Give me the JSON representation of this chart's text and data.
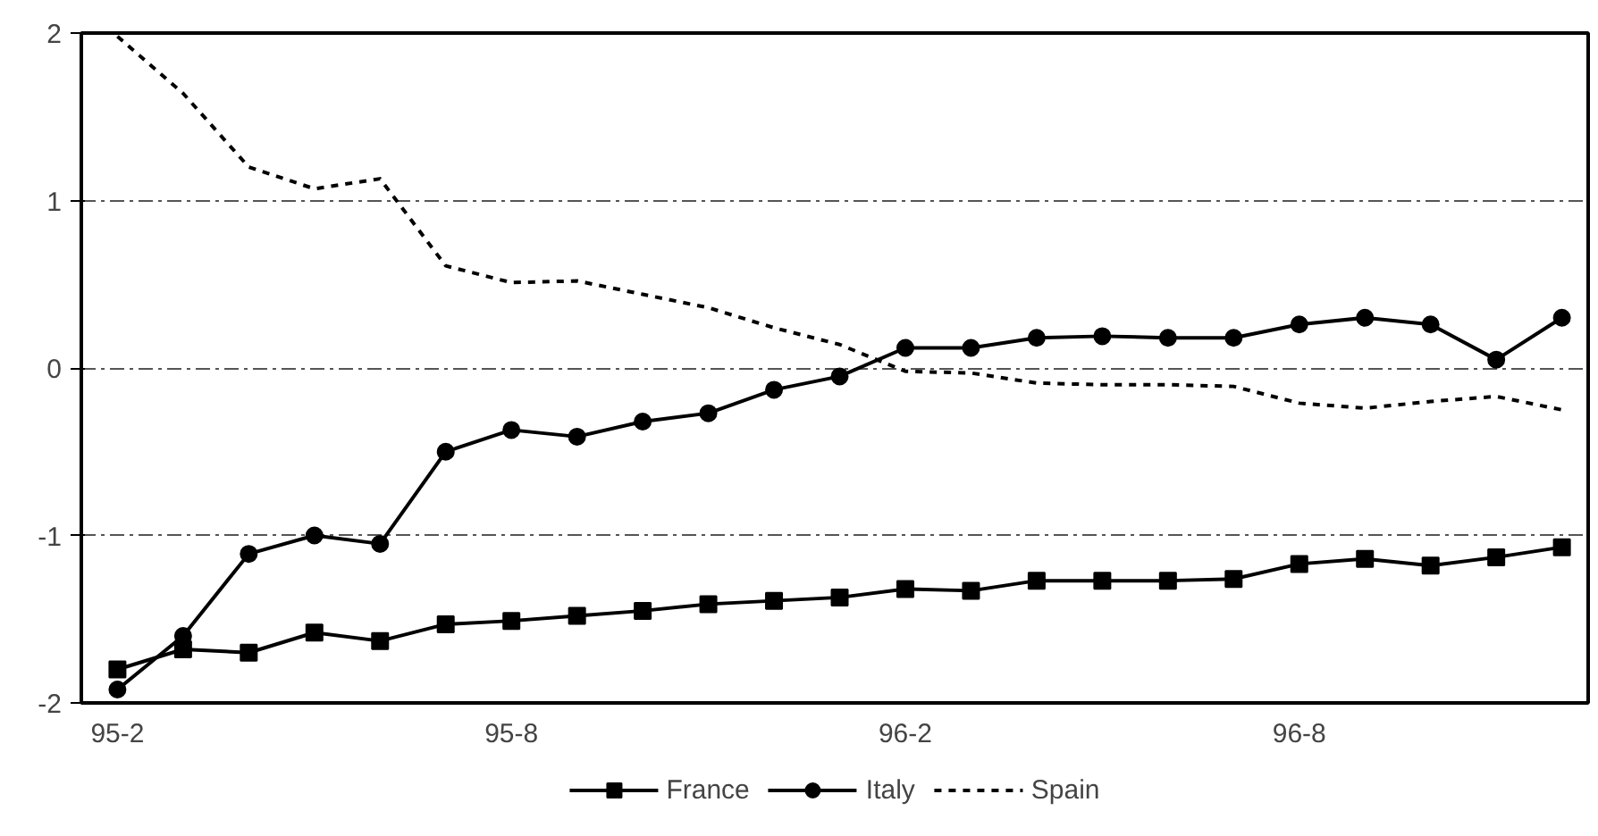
{
  "chart_data": {
    "type": "line",
    "categories": [
      "95-2",
      null,
      null,
      null,
      null,
      null,
      "95-8",
      null,
      null,
      null,
      null,
      null,
      "96-2",
      null,
      null,
      null,
      null,
      null,
      "96-8",
      null,
      null,
      null,
      null
    ],
    "series": [
      {
        "name": "France",
        "color": "#000000",
        "marker": "square",
        "line_style": "solid",
        "values": [
          -1.8,
          -1.68,
          -1.7,
          -1.58,
          -1.63,
          -1.53,
          -1.51,
          -1.48,
          -1.45,
          -1.41,
          -1.39,
          -1.37,
          -1.32,
          -1.33,
          -1.27,
          -1.27,
          -1.27,
          -1.26,
          -1.17,
          -1.14,
          -1.18,
          -1.13,
          -1.07
        ]
      },
      {
        "name": "Italy",
        "color": "#000000",
        "marker": "circle",
        "line_style": "solid",
        "values": [
          -1.92,
          -1.6,
          -1.11,
          -1.0,
          -1.05,
          -0.5,
          -0.37,
          -0.41,
          -0.32,
          -0.27,
          -0.13,
          -0.05,
          0.12,
          0.12,
          0.18,
          0.19,
          0.18,
          0.18,
          0.26,
          0.3,
          0.26,
          0.05,
          0.3
        ]
      },
      {
        "name": "Spain",
        "color": "#000000",
        "marker": "none",
        "line_style": "dashed",
        "values": [
          1.98,
          1.64,
          1.2,
          1.07,
          1.13,
          0.61,
          0.51,
          0.52,
          0.44,
          0.36,
          0.24,
          0.14,
          -0.02,
          -0.03,
          -0.09,
          -0.1,
          -0.1,
          -0.11,
          -0.21,
          -0.24,
          -0.2,
          -0.17,
          -0.25
        ]
      }
    ],
    "ylim": [
      -2,
      2
    ],
    "yticks": [
      -2,
      -1,
      0,
      1,
      2
    ],
    "grid": "y",
    "legend": "bottom"
  }
}
